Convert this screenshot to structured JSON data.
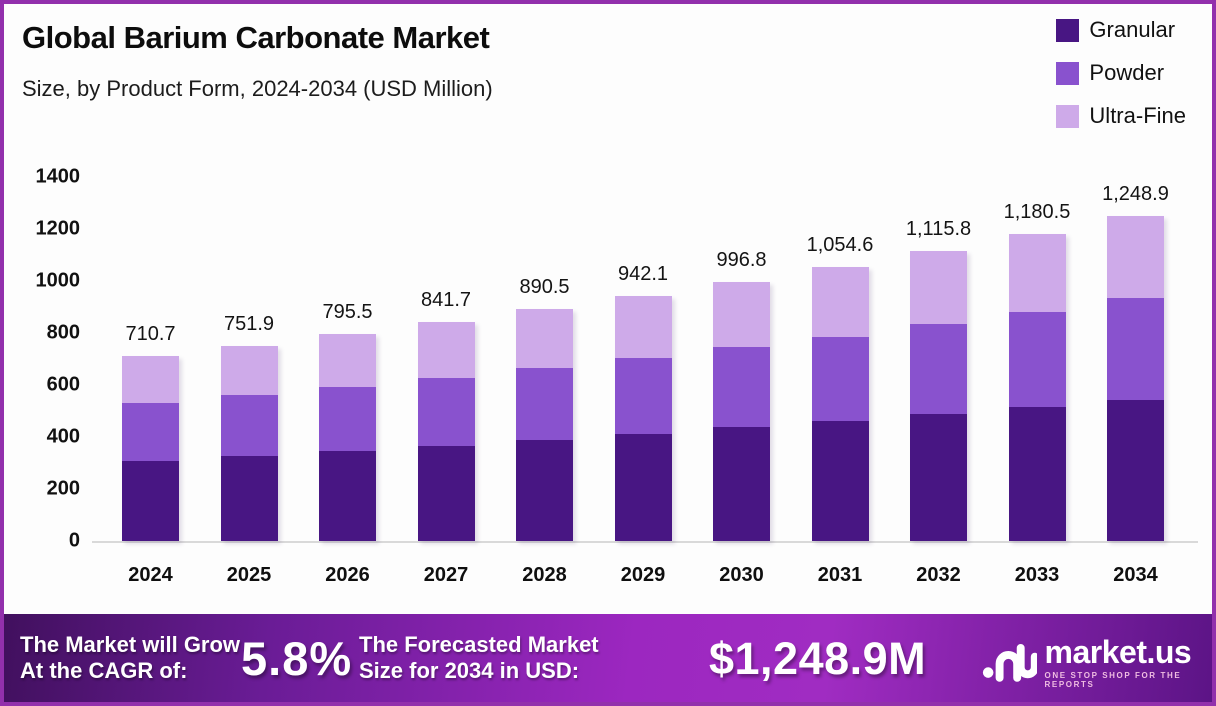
{
  "header": {
    "title": "Global Barium Carbonate Market",
    "subtitle": "Size, by Product Form, 2024-2034 (USD Million)"
  },
  "legend": [
    {
      "label": "Granular",
      "color": "#481683"
    },
    {
      "label": "Powder",
      "color": "#8952CE"
    },
    {
      "label": "Ultra-Fine",
      "color": "#CEAAE9"
    }
  ],
  "chart_data": {
    "type": "bar",
    "stacked": true,
    "title": "Global Barium Carbonate Market Size, by Product Form, 2024-2034 (USD Million)",
    "categories": [
      "2024",
      "2025",
      "2026",
      "2027",
      "2028",
      "2029",
      "2030",
      "2031",
      "2032",
      "2033",
      "2034"
    ],
    "series": [
      {
        "name": "Granular",
        "color": "#481683",
        "values": [
          309,
          327,
          346,
          366,
          388,
          411,
          437,
          461,
          487,
          516,
          543
        ]
      },
      {
        "name": "Powder",
        "color": "#8952CE",
        "values": [
          220,
          234,
          246,
          260,
          277,
          293,
          310,
          324,
          347,
          364,
          390
        ]
      },
      {
        "name": "Ultra-Fine",
        "color": "#CEAAE9",
        "values": [
          181.7,
          190.9,
          203.5,
          215.7,
          225.5,
          238.1,
          249.8,
          269.6,
          281.8,
          300.5,
          315.9
        ]
      }
    ],
    "totals": [
      710.7,
      751.9,
      795.5,
      841.7,
      890.5,
      942.1,
      996.8,
      1054.6,
      1115.8,
      1180.5,
      1248.9
    ],
    "total_labels": [
      "710.7",
      "751.9",
      "795.5",
      "841.7",
      "890.5",
      "942.1",
      "996.8",
      "1,054.6",
      "1,115.8",
      "1,180.5",
      "1,248.9"
    ],
    "xlabel": "",
    "ylabel": "",
    "ylim": [
      0,
      1400
    ],
    "y_ticks": [
      0,
      200,
      400,
      600,
      800,
      1000,
      1200,
      1400
    ],
    "grid": false,
    "legend_position": "top-right"
  },
  "banner": {
    "cagr_label_line1": "The Market will Grow",
    "cagr_label_line2": "At the CAGR of:",
    "cagr_value": "5.8%",
    "forecast_label_line1": "The Forecasted Market",
    "forecast_label_line2": "Size for 2034 in USD:",
    "forecast_value": "$1,248.9M",
    "brand_name": "market.us",
    "brand_tagline": "ONE STOP SHOP FOR THE REPORTS"
  },
  "colors": {
    "frame_border": "#9230AC",
    "background": "#FDFDFD",
    "axis_line": "#D9D9D9",
    "banner_gradient_left": "#41105E",
    "banner_gradient_mid": "#9C27C0",
    "banner_gradient_right": "#5C1486",
    "banner_text": "#FFFFFF"
  }
}
